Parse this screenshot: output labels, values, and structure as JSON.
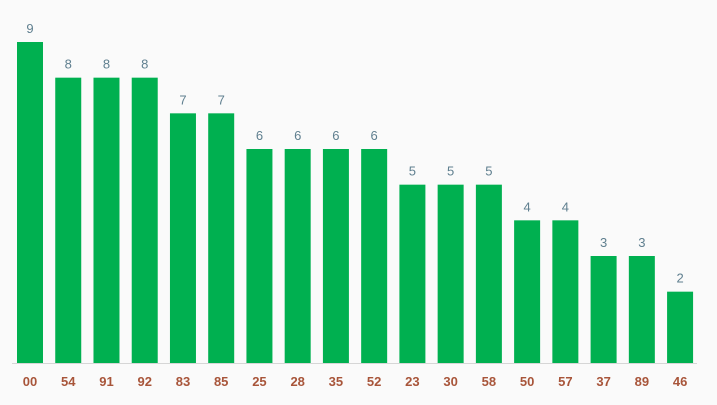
{
  "chart_data": {
    "type": "bar",
    "categories": [
      "00",
      "54",
      "91",
      "92",
      "83",
      "85",
      "25",
      "28",
      "35",
      "52",
      "23",
      "30",
      "58",
      "50",
      "57",
      "37",
      "89",
      "46"
    ],
    "values": [
      9,
      8,
      8,
      8,
      7,
      7,
      6,
      6,
      6,
      6,
      5,
      5,
      5,
      4,
      4,
      3,
      3,
      2
    ],
    "color": "#00b050"
  }
}
